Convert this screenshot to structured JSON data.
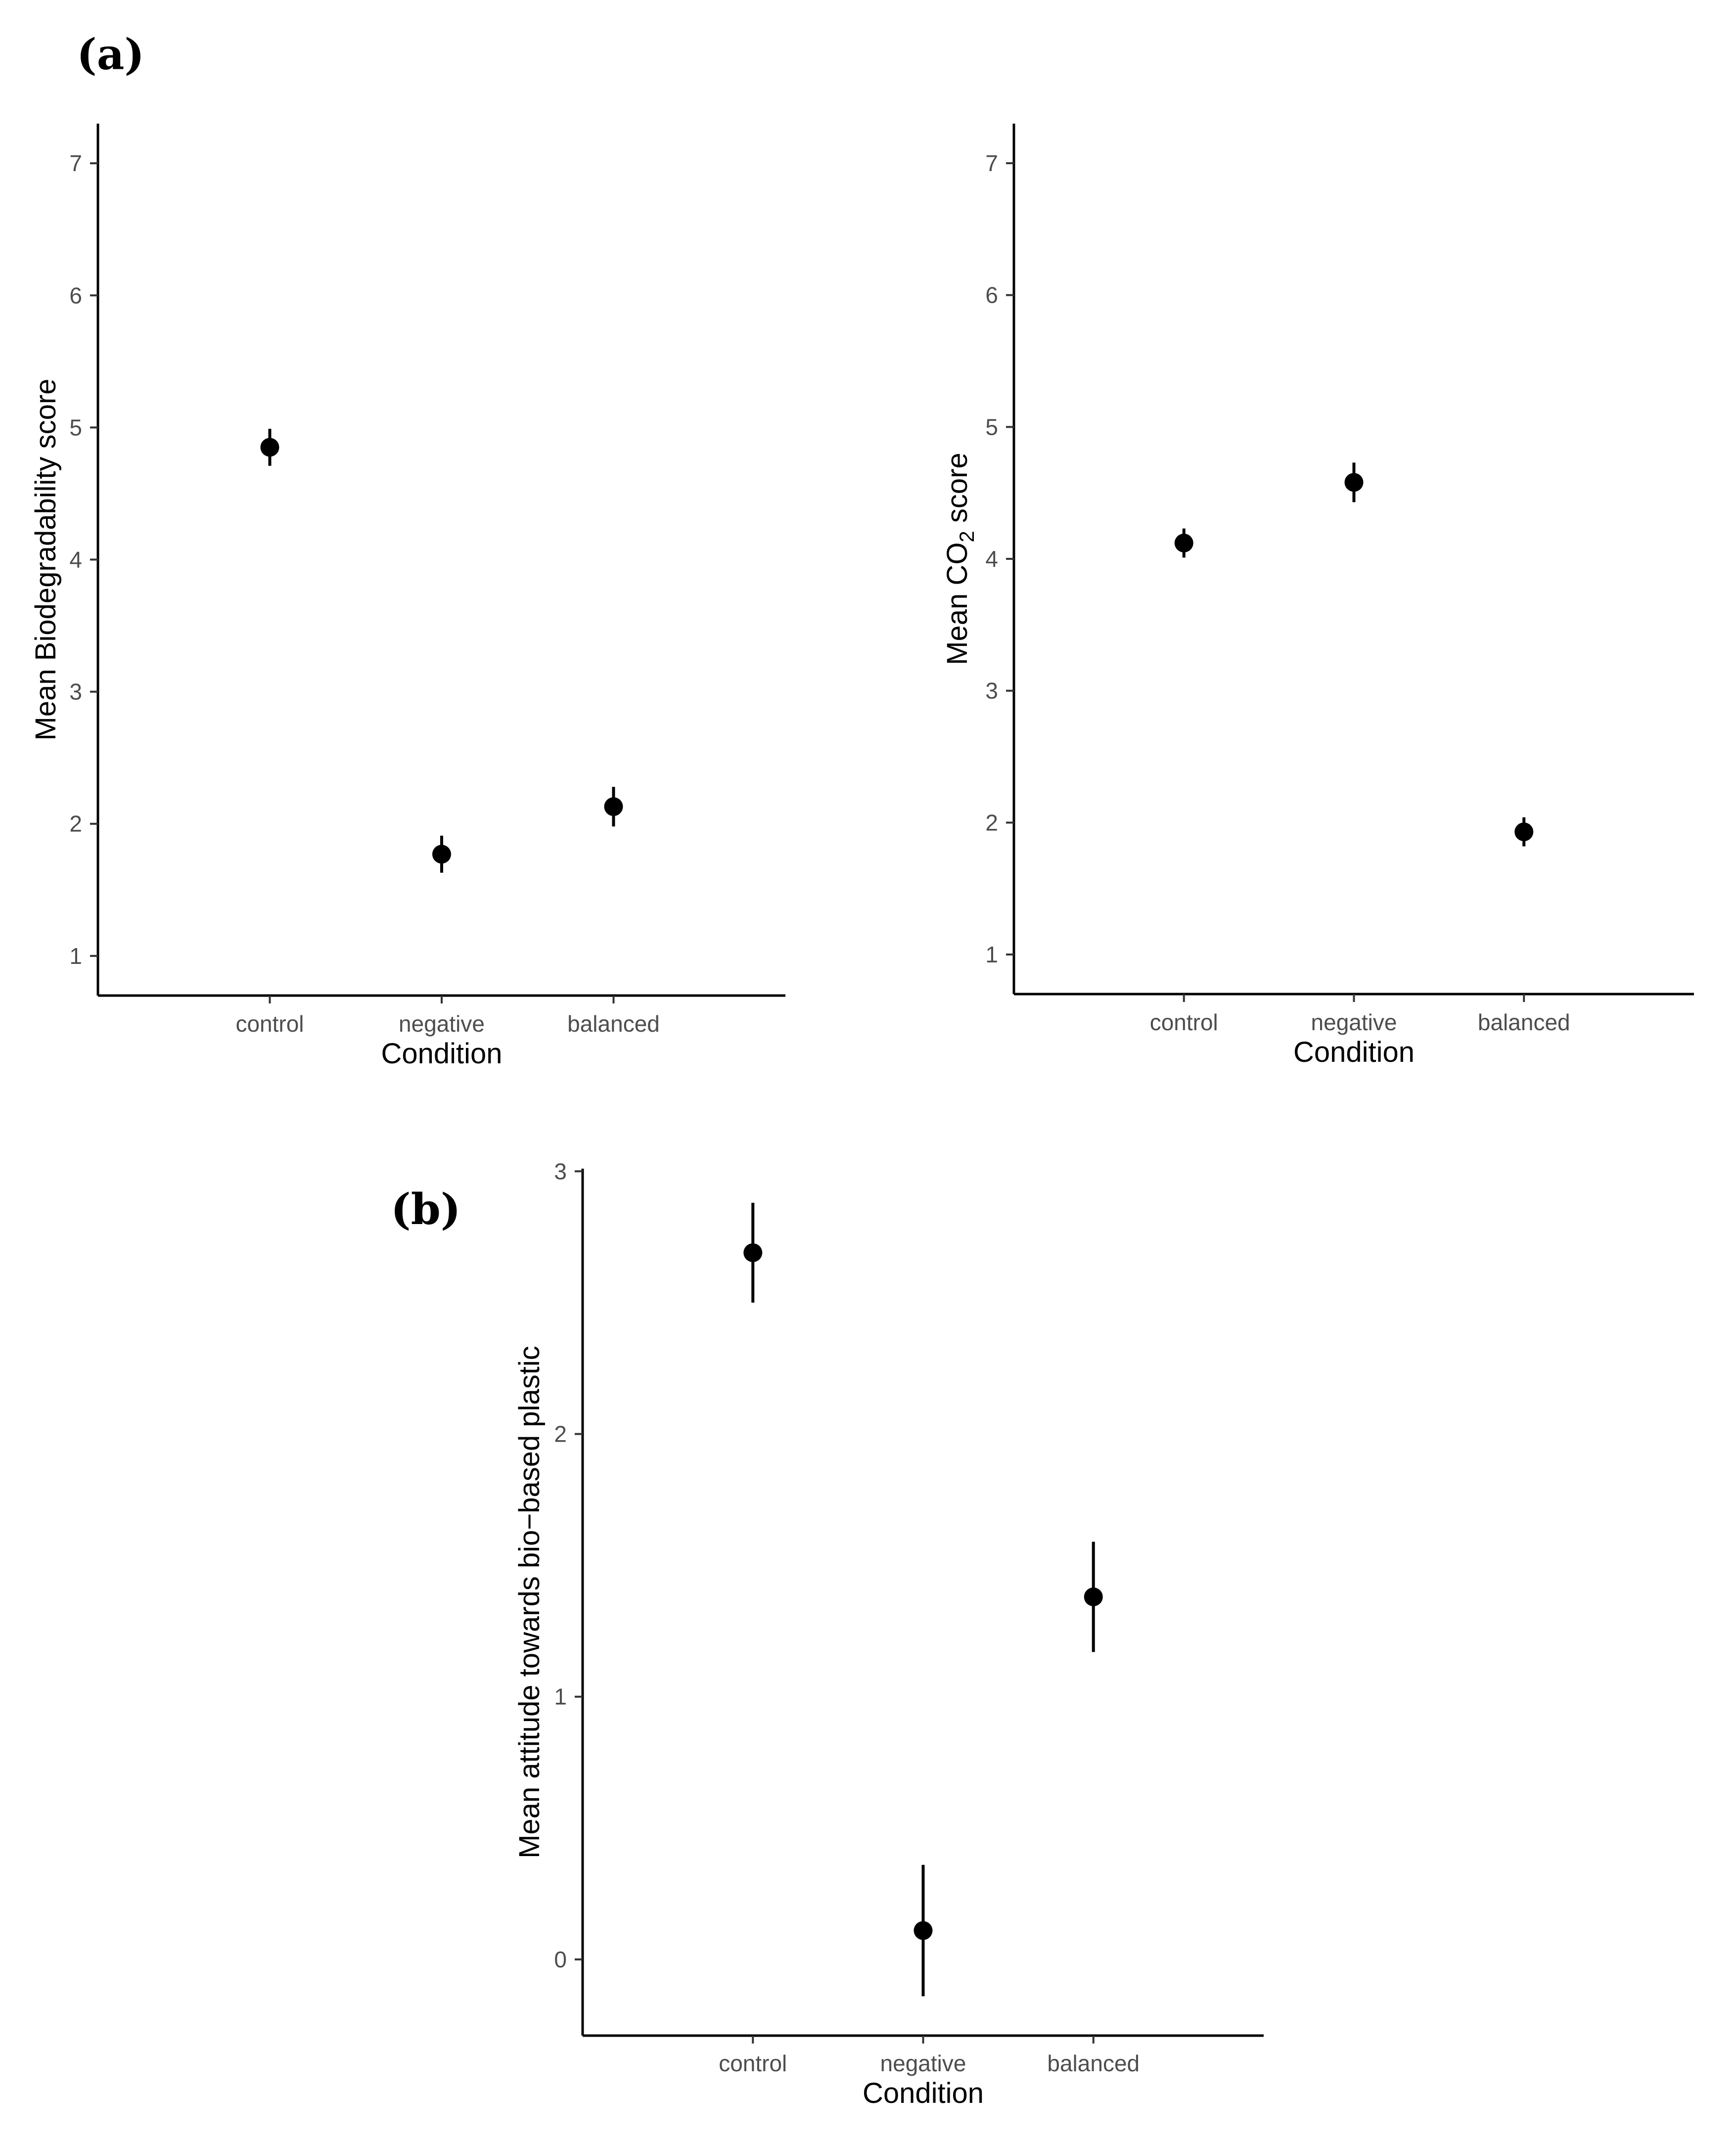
{
  "panel_labels": {
    "a": "(a)",
    "b": "(b)"
  },
  "chart_data": [
    {
      "type": "scatter",
      "panel": "a",
      "title": "",
      "xlabel": "Condition",
      "ylabel": "Mean Biodegradability score",
      "categories": [
        "control",
        "negative",
        "balanced"
      ],
      "series": [
        {
          "values": [
            4.85,
            1.77,
            2.13
          ],
          "error_low": [
            4.71,
            1.63,
            1.98
          ],
          "error_high": [
            4.99,
            1.91,
            2.28
          ]
        }
      ],
      "ylim": [
        0.7,
        7.3
      ],
      "yticks": [
        1,
        2,
        3,
        4,
        5,
        6,
        7
      ],
      "ytick_labels": [
        "1",
        "2",
        "3",
        "4",
        "5",
        "6",
        "7"
      ],
      "grid": false,
      "legend": "none",
      "color": "#000000"
    },
    {
      "type": "scatter",
      "panel": "a",
      "title": "",
      "xlabel": "Condition",
      "ylabel_parts": {
        "pre": "Mean CO",
        "sub": "2",
        "post": " score"
      },
      "categories": [
        "control",
        "negative",
        "balanced"
      ],
      "series": [
        {
          "values": [
            4.12,
            4.58,
            1.93
          ],
          "error_low": [
            4.01,
            4.43,
            1.82
          ],
          "error_high": [
            4.23,
            4.73,
            2.04
          ]
        }
      ],
      "ylim": [
        0.7,
        7.3
      ],
      "yticks": [
        1,
        2,
        3,
        4,
        5,
        6,
        7
      ],
      "ytick_labels": [
        "1",
        "2",
        "3",
        "4",
        "5",
        "6",
        "7"
      ],
      "grid": false,
      "legend": "none",
      "color": "#000000"
    },
    {
      "type": "scatter",
      "panel": "b",
      "title": "",
      "xlabel": "Condition",
      "ylabel": "Mean attitude towards bio−based plastic",
      "categories": [
        "control",
        "negative",
        "balanced"
      ],
      "series": [
        {
          "values": [
            2.69,
            0.11,
            1.38
          ],
          "error_low": [
            2.5,
            -0.14,
            1.17
          ],
          "error_high": [
            2.88,
            0.36,
            1.59
          ]
        }
      ],
      "ylim": [
        -0.29,
        3.01
      ],
      "yticks": [
        0,
        1,
        2,
        3
      ],
      "ytick_labels": [
        "0",
        "1",
        "2",
        "3"
      ],
      "grid": false,
      "legend": "none",
      "color": "#000000"
    }
  ]
}
